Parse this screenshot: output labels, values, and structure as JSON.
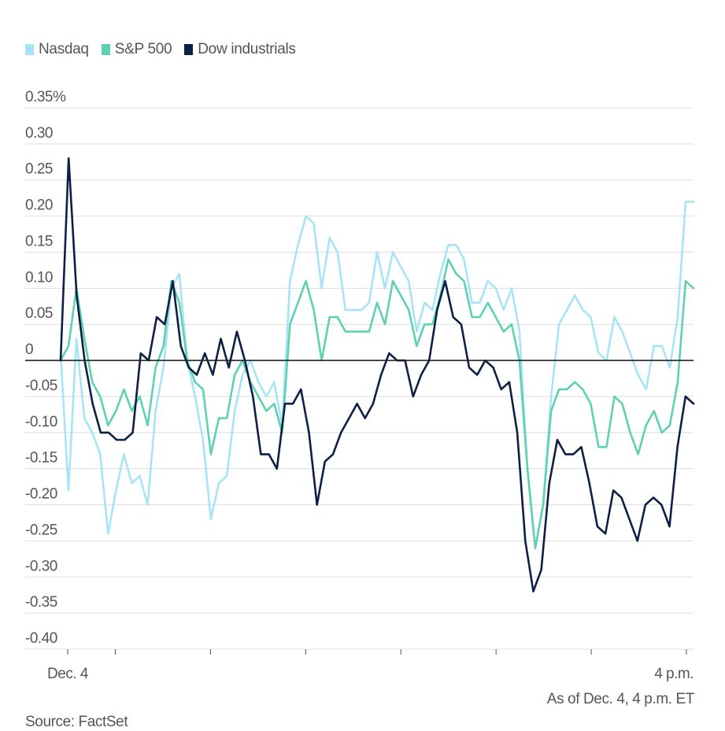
{
  "chart_data": {
    "type": "line",
    "title": "",
    "xlabel": "",
    "ylabel": "",
    "y_unit": "%",
    "ylim": [
      -0.4,
      0.35
    ],
    "y_ticks": [
      0.35,
      0.3,
      0.25,
      0.2,
      0.15,
      0.1,
      0.05,
      0,
      -0.05,
      -0.1,
      -0.15,
      -0.2,
      -0.25,
      -0.3,
      -0.35,
      -0.4
    ],
    "y_tick_labels": [
      "0.35%",
      "0.30",
      "0.25",
      "0.20",
      "0.15",
      "0.10",
      "0.05",
      "0",
      "-0.05",
      "-0.10",
      "-0.15",
      "-0.20",
      "-0.25",
      "-0.30",
      "-0.35",
      "-0.40"
    ],
    "x_range": [
      0,
      390
    ],
    "x_tick_positions": [
      0,
      30,
      90,
      150,
      210,
      270,
      330,
      390
    ],
    "x_labels": [
      {
        "x": 0,
        "text": "Dec. 4"
      },
      {
        "x": 390,
        "text": "4 p.m."
      }
    ],
    "grid": true,
    "legend_position": "top-left",
    "series": [
      {
        "name": "Nasdaq",
        "color": "#a8e4f7",
        "values": [
          0.01,
          -0.18,
          0.03,
          -0.08,
          -0.1,
          -0.13,
          -0.24,
          -0.18,
          -0.13,
          -0.17,
          -0.16,
          -0.2,
          -0.07,
          -0.01,
          0.1,
          0.12,
          0.0,
          -0.05,
          -0.11,
          -0.22,
          -0.17,
          -0.16,
          -0.07,
          -0.02,
          0.0,
          -0.03,
          -0.05,
          -0.03,
          -0.09,
          0.11,
          0.16,
          0.2,
          0.19,
          0.1,
          0.17,
          0.15,
          0.07,
          0.07,
          0.07,
          0.08,
          0.15,
          0.1,
          0.15,
          0.13,
          0.11,
          0.04,
          0.08,
          0.07,
          0.12,
          0.16,
          0.16,
          0.14,
          0.08,
          0.08,
          0.11,
          0.1,
          0.07,
          0.1,
          0.04,
          -0.15,
          -0.26,
          -0.2,
          -0.05,
          0.05,
          0.07,
          0.09,
          0.07,
          0.06,
          0.01,
          0.0,
          0.06,
          0.04,
          0.01,
          -0.02,
          -0.04,
          0.02,
          0.02,
          -0.01,
          0.06,
          0.22,
          0.22
        ]
      },
      {
        "name": "S&P 500",
        "color": "#5ed1b2",
        "values": [
          0.0,
          0.02,
          0.1,
          0.03,
          -0.03,
          -0.05,
          -0.09,
          -0.07,
          -0.04,
          -0.07,
          -0.05,
          -0.09,
          -0.01,
          0.02,
          0.11,
          0.08,
          0.0,
          -0.03,
          -0.04,
          -0.13,
          -0.08,
          -0.08,
          -0.02,
          0.0,
          -0.03,
          -0.05,
          -0.07,
          -0.06,
          -0.1,
          0.05,
          0.08,
          0.11,
          0.07,
          0.0,
          0.06,
          0.06,
          0.04,
          0.04,
          0.04,
          0.04,
          0.08,
          0.05,
          0.11,
          0.09,
          0.07,
          0.02,
          0.05,
          0.05,
          0.09,
          0.14,
          0.12,
          0.11,
          0.06,
          0.06,
          0.08,
          0.06,
          0.04,
          0.05,
          0.0,
          -0.15,
          -0.26,
          -0.2,
          -0.07,
          -0.04,
          -0.04,
          -0.03,
          -0.04,
          -0.06,
          -0.12,
          -0.12,
          -0.05,
          -0.06,
          -0.1,
          -0.13,
          -0.09,
          -0.07,
          -0.1,
          -0.09,
          -0.03,
          0.11,
          0.1
        ]
      },
      {
        "name": "Dow industrials",
        "color": "#0d1f45",
        "values": [
          0.0,
          0.28,
          0.09,
          0.0,
          -0.06,
          -0.1,
          -0.1,
          -0.11,
          -0.11,
          -0.1,
          0.01,
          0.0,
          0.06,
          0.05,
          0.11,
          0.02,
          -0.01,
          -0.02,
          0.01,
          -0.02,
          0.03,
          -0.01,
          0.04,
          0.0,
          -0.05,
          -0.13,
          -0.13,
          -0.15,
          -0.06,
          -0.06,
          -0.04,
          -0.1,
          -0.2,
          -0.14,
          -0.13,
          -0.1,
          -0.08,
          -0.06,
          -0.08,
          -0.06,
          -0.02,
          0.01,
          0.0,
          0.0,
          -0.05,
          -0.02,
          0.0,
          0.07,
          0.11,
          0.06,
          0.05,
          -0.01,
          -0.02,
          0.0,
          -0.01,
          -0.04,
          -0.03,
          -0.1,
          -0.25,
          -0.32,
          -0.29,
          -0.17,
          -0.11,
          -0.13,
          -0.13,
          -0.12,
          -0.17,
          -0.23,
          -0.24,
          -0.18,
          -0.19,
          -0.22,
          -0.25,
          -0.2,
          -0.19,
          -0.2,
          -0.23,
          -0.12,
          -0.05,
          -0.06
        ]
      }
    ]
  },
  "legend": [
    {
      "label": "Nasdaq",
      "color": "#a8e4f7"
    },
    {
      "label": "S&P 500",
      "color": "#5ed1b2"
    },
    {
      "label": "Dow industrials",
      "color": "#0d1f45"
    }
  ],
  "footer": {
    "as_of": "As of Dec. 4, 4 p.m. ET",
    "source": "Source: FactSet"
  }
}
